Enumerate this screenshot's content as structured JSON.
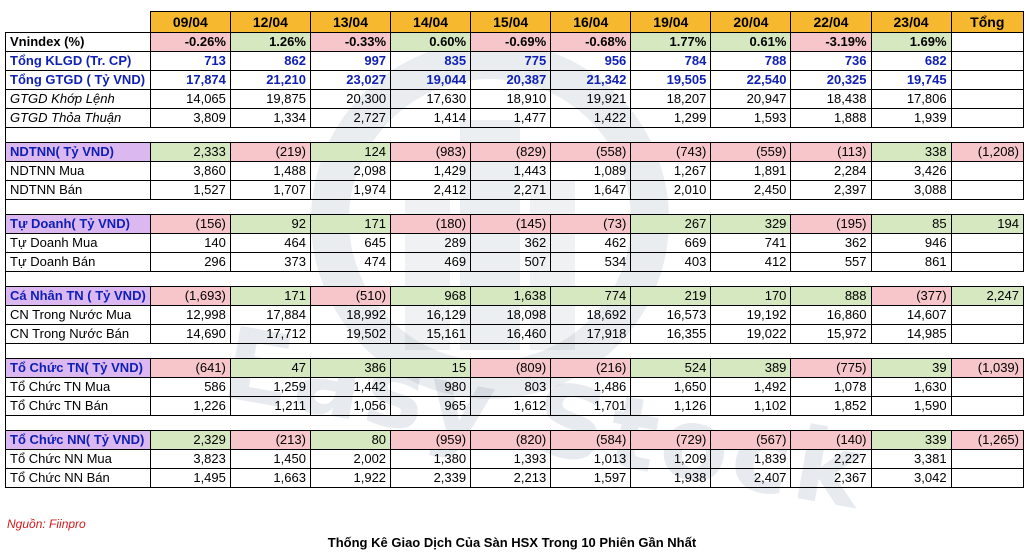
{
  "watermark_text": "Easy Stock",
  "header": {
    "dates": [
      "09/04",
      "12/04",
      "13/04",
      "14/04",
      "15/04",
      "16/04",
      "19/04",
      "20/04",
      "22/04",
      "23/04"
    ],
    "total_label": "Tổng"
  },
  "rows": [
    {
      "kind": "vn",
      "label": "Vnindex (%)",
      "values": [
        "-0.26%",
        "1.26%",
        "-0.33%",
        "0.60%",
        "-0.69%",
        "-0.68%",
        "1.77%",
        "0.61%",
        "-3.19%",
        "1.69%"
      ],
      "total": ""
    },
    {
      "kind": "blue",
      "label": "Tổng KLGD (Tr. CP)",
      "values": [
        "713",
        "862",
        "997",
        "835",
        "775",
        "956",
        "784",
        "788",
        "736",
        "682"
      ],
      "total": ""
    },
    {
      "kind": "blue",
      "label": "Tổng GTGD ( Tỷ VND)",
      "values": [
        "17,874",
        "21,210",
        "23,027",
        "19,044",
        "20,387",
        "21,342",
        "19,505",
        "22,540",
        "20,325",
        "19,745"
      ],
      "total": ""
    },
    {
      "kind": "sub",
      "label": "GTGD Khớp Lệnh",
      "values": [
        "14,065",
        "19,875",
        "20,300",
        "17,630",
        "18,910",
        "19,921",
        "18,207",
        "20,947",
        "18,438",
        "17,806"
      ],
      "total": ""
    },
    {
      "kind": "sub",
      "label": "GTGD Thỏa Thuận",
      "values": [
        "3,809",
        "1,334",
        "2,727",
        "1,414",
        "1,477",
        "1,422",
        "1,299",
        "1,593",
        "1,888",
        "1,939"
      ],
      "total": ""
    },
    {
      "kind": "gap"
    },
    {
      "kind": "sec",
      "label": "NDTNN( Tỷ VND)",
      "values": [
        "2,333",
        "(219)",
        "124",
        "(983)",
        "(829)",
        "(558)",
        "(743)",
        "(559)",
        "(113)",
        "338"
      ],
      "total": "(1,208)"
    },
    {
      "kind": "plain",
      "label": "NDTNN Mua",
      "values": [
        "3,860",
        "1,488",
        "2,098",
        "1,429",
        "1,443",
        "1,089",
        "1,267",
        "1,891",
        "2,284",
        "3,426"
      ],
      "total": ""
    },
    {
      "kind": "plain",
      "label": "NDTNN Bán",
      "values": [
        "1,527",
        "1,707",
        "1,974",
        "2,412",
        "2,271",
        "1,647",
        "2,010",
        "2,450",
        "2,397",
        "3,088"
      ],
      "total": ""
    },
    {
      "kind": "gap"
    },
    {
      "kind": "sec",
      "label": "Tự Doanh( Tỷ VND)",
      "values": [
        "(156)",
        "92",
        "171",
        "(180)",
        "(145)",
        "(73)",
        "267",
        "329",
        "(195)",
        "85"
      ],
      "total": "194"
    },
    {
      "kind": "plain",
      "label": "Tự Doanh Mua",
      "values": [
        "140",
        "464",
        "645",
        "289",
        "362",
        "462",
        "669",
        "741",
        "362",
        "946"
      ],
      "total": ""
    },
    {
      "kind": "plain",
      "label": "Tự Doanh Bán",
      "values": [
        "296",
        "373",
        "474",
        "469",
        "507",
        "534",
        "403",
        "412",
        "557",
        "861"
      ],
      "total": ""
    },
    {
      "kind": "gap"
    },
    {
      "kind": "sec",
      "label": "Cá Nhân TN ( Tỷ VND)",
      "values": [
        "(1,693)",
        "171",
        "(510)",
        "968",
        "1,638",
        "774",
        "219",
        "170",
        "888",
        "(377)"
      ],
      "total": "2,247"
    },
    {
      "kind": "plain",
      "label": "CN Trong Nước Mua",
      "values": [
        "12,998",
        "17,884",
        "18,992",
        "16,129",
        "18,098",
        "18,692",
        "16,573",
        "19,192",
        "16,860",
        "14,607"
      ],
      "total": ""
    },
    {
      "kind": "plain",
      "label": "CN Trong Nước Bán",
      "values": [
        "14,690",
        "17,712",
        "19,502",
        "15,161",
        "16,460",
        "17,918",
        "16,355",
        "19,022",
        "15,972",
        "14,985"
      ],
      "total": ""
    },
    {
      "kind": "gap"
    },
    {
      "kind": "sec",
      "label": "Tổ Chức TN( Tỷ VND)",
      "values": [
        "(641)",
        "47",
        "386",
        "15",
        "(809)",
        "(216)",
        "524",
        "389",
        "(775)",
        "39"
      ],
      "total": "(1,039)"
    },
    {
      "kind": "plain",
      "label": "Tổ Chức TN Mua",
      "values": [
        "586",
        "1,259",
        "1,442",
        "980",
        "803",
        "1,486",
        "1,650",
        "1,492",
        "1,078",
        "1,630"
      ],
      "total": ""
    },
    {
      "kind": "plain",
      "label": "Tổ Chức TN Bán",
      "values": [
        "1,226",
        "1,211",
        "1,056",
        "965",
        "1,612",
        "1,701",
        "1,126",
        "1,102",
        "1,852",
        "1,590"
      ],
      "total": ""
    },
    {
      "kind": "gap"
    },
    {
      "kind": "sec",
      "label": "Tổ Chức NN( Tỷ VND)",
      "values": [
        "2,329",
        "(213)",
        "80",
        "(959)",
        "(820)",
        "(584)",
        "(729)",
        "(567)",
        "(140)",
        "339"
      ],
      "total": "(1,265)"
    },
    {
      "kind": "plain",
      "label": "Tổ Chức NN Mua",
      "values": [
        "3,823",
        "1,450",
        "2,002",
        "1,380",
        "1,393",
        "1,013",
        "1,209",
        "1,839",
        "2,227",
        "3,381"
      ],
      "total": ""
    },
    {
      "kind": "plain",
      "label": "Tổ Chức NN Bán",
      "values": [
        "1,495",
        "1,663",
        "1,922",
        "2,339",
        "2,213",
        "1,597",
        "1,938",
        "2,407",
        "2,367",
        "3,042"
      ],
      "total": ""
    }
  ],
  "source": "Nguồn: Fiinpro",
  "caption": "Thống Kê Giao Dịch Của Sàn HSX Trong 10 Phiên Gần Nhất"
}
